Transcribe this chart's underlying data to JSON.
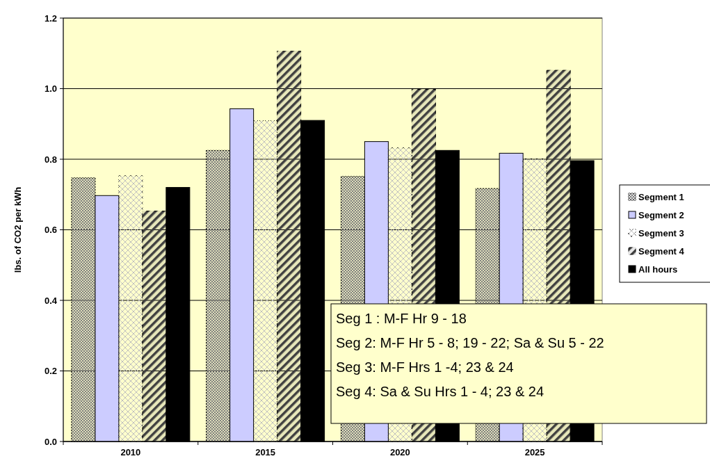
{
  "chart_data": {
    "type": "bar",
    "ylabel": "lbs. of CO2 per kWh",
    "categories": [
      "2010",
      "2015",
      "2020",
      "2025"
    ],
    "series": [
      {
        "name": "Segment 1",
        "color": "#808080",
        "values": [
          0.747,
          0.825,
          0.751,
          0.717
        ]
      },
      {
        "name": "Segment 2",
        "color": "#ccccff",
        "values": [
          0.697,
          0.943,
          0.85,
          0.817
        ]
      },
      {
        "name": "Segment 3",
        "color": "#c0c0c0",
        "values": [
          0.753,
          0.909,
          0.832,
          0.801
        ]
      },
      {
        "name": "Segment 4",
        "color": "#404040",
        "values": [
          0.653,
          1.106,
          0.998,
          1.052
        ]
      },
      {
        "name": "All hours",
        "color": "#000000",
        "values": [
          0.72,
          0.91,
          0.825,
          0.796
        ]
      }
    ],
    "ylim": [
      0,
      1.2
    ],
    "yticks": [
      {
        "value": 0,
        "label": "0.0"
      },
      {
        "value": 0.2,
        "label": "0.2"
      },
      {
        "value": 0.4,
        "label": "0.4"
      },
      {
        "value": 0.6,
        "label": "0.6"
      },
      {
        "value": 0.8,
        "label": "0.8"
      },
      {
        "value": 1.0,
        "label": "1.0"
      },
      {
        "value": 1.2,
        "label": "1.2"
      }
    ],
    "grid": "y",
    "legend": "right",
    "annotations": [
      "Seg 1 : M-F Hr 9 - 18",
      "Seg 2: M-F Hr 5 - 8; 19 - 22; Sa & Su 5 - 22",
      "Seg 3: M-F Hrs 1 -4; 23 & 24",
      "Seg 4: Sa & Su Hrs 1 - 4; 23 & 24"
    ]
  }
}
